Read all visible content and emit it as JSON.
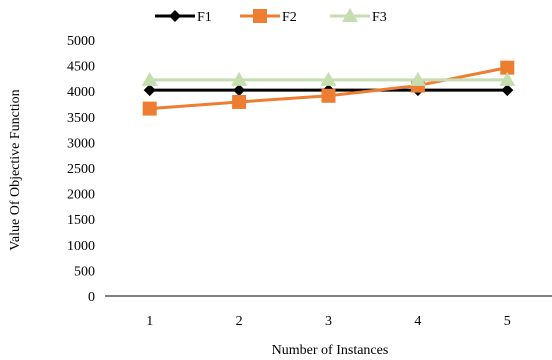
{
  "chart_data": {
    "type": "line",
    "title": "",
    "xlabel": "Number of Instances",
    "ylabel": "Value Of Objective Function",
    "categories": [
      "1",
      "2",
      "3",
      "4",
      "5"
    ],
    "ylim": [
      0,
      5000
    ],
    "yticks": [
      "0",
      "500",
      "1000",
      "1500",
      "2000",
      "2500",
      "3000",
      "3500",
      "4000",
      "4500",
      "5000"
    ],
    "grid": false,
    "legend_position": "top",
    "series": [
      {
        "name": "F1",
        "values": [
          4020,
          4020,
          4020,
          4020,
          4020
        ],
        "color": "#000000",
        "marker": "diamond"
      },
      {
        "name": "F2",
        "values": [
          3660,
          3790,
          3910,
          4110,
          4460
        ],
        "color": "#ED7D31",
        "marker": "square"
      },
      {
        "name": "F3",
        "values": [
          4220,
          4220,
          4220,
          4220,
          4220
        ],
        "color": "#C5DEB0",
        "marker": "triangle"
      }
    ]
  }
}
